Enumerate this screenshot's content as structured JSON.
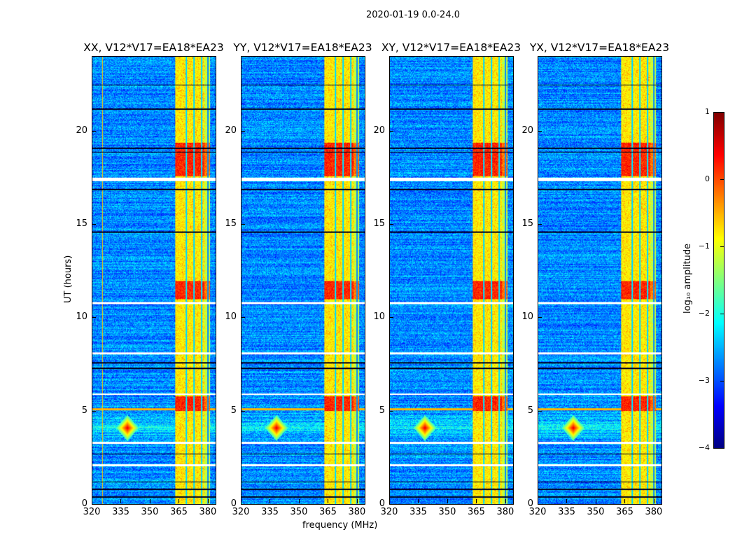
{
  "suptitle": "2020-01-19 0.0-24.0",
  "chart_data": {
    "type": "heatmap",
    "panels": [
      {
        "title": "XX, V12*V17=EA18*EA23"
      },
      {
        "title": "YY, V12*V17=EA18*EA23"
      },
      {
        "title": "XY, V12*V17=EA18*EA23"
      },
      {
        "title": "YX, V12*V17=EA18*EA23"
      }
    ],
    "xlabel": "frequency (MHz)",
    "ylabel": "UT (hours)",
    "xlim": [
      320,
      384
    ],
    "ylim": [
      0,
      24
    ],
    "xticks": [
      "320",
      "335",
      "350",
      "365",
      "380"
    ],
    "xtick_values": [
      320,
      335,
      350,
      365,
      380
    ],
    "yticks": [
      "0",
      "5",
      "10",
      "15",
      "20"
    ],
    "ytick_values": [
      0,
      5,
      10,
      15,
      20
    ],
    "colorbar": {
      "label": "log₁₀ amplitude",
      "range": [
        -4,
        1
      ],
      "ticks": [
        "1",
        "0",
        "−1",
        "−2",
        "−3",
        "−4"
      ],
      "tick_values": [
        1,
        0,
        -1,
        -2,
        -3,
        -4
      ],
      "colormap": "jet"
    },
    "features": {
      "background_level": -2.7,
      "rfi_band_mhz": [
        363,
        381
      ],
      "rfi_band_level": -0.8,
      "rfi_band_gaps_mhz": [
        368.5,
        372.5,
        376.5,
        380
      ],
      "strong_rfi_hours": [
        [
          17.6,
          19.4
        ],
        [
          5.0,
          5.8
        ],
        [
          11.0,
          12.0
        ]
      ],
      "hotspot": {
        "freq_mhz": 338,
        "hour": 4.1,
        "level": 0.5
      },
      "flagged_hours_white": [
        2.1,
        3.3,
        5.9,
        8.1,
        10.8,
        17.4,
        17.5
      ],
      "dark_rows_hours": [
        0.4,
        0.8,
        1.2,
        2.7,
        7.3,
        7.6,
        14.6,
        16.9,
        18.9,
        19.1,
        21.2,
        22.5
      ]
    }
  }
}
